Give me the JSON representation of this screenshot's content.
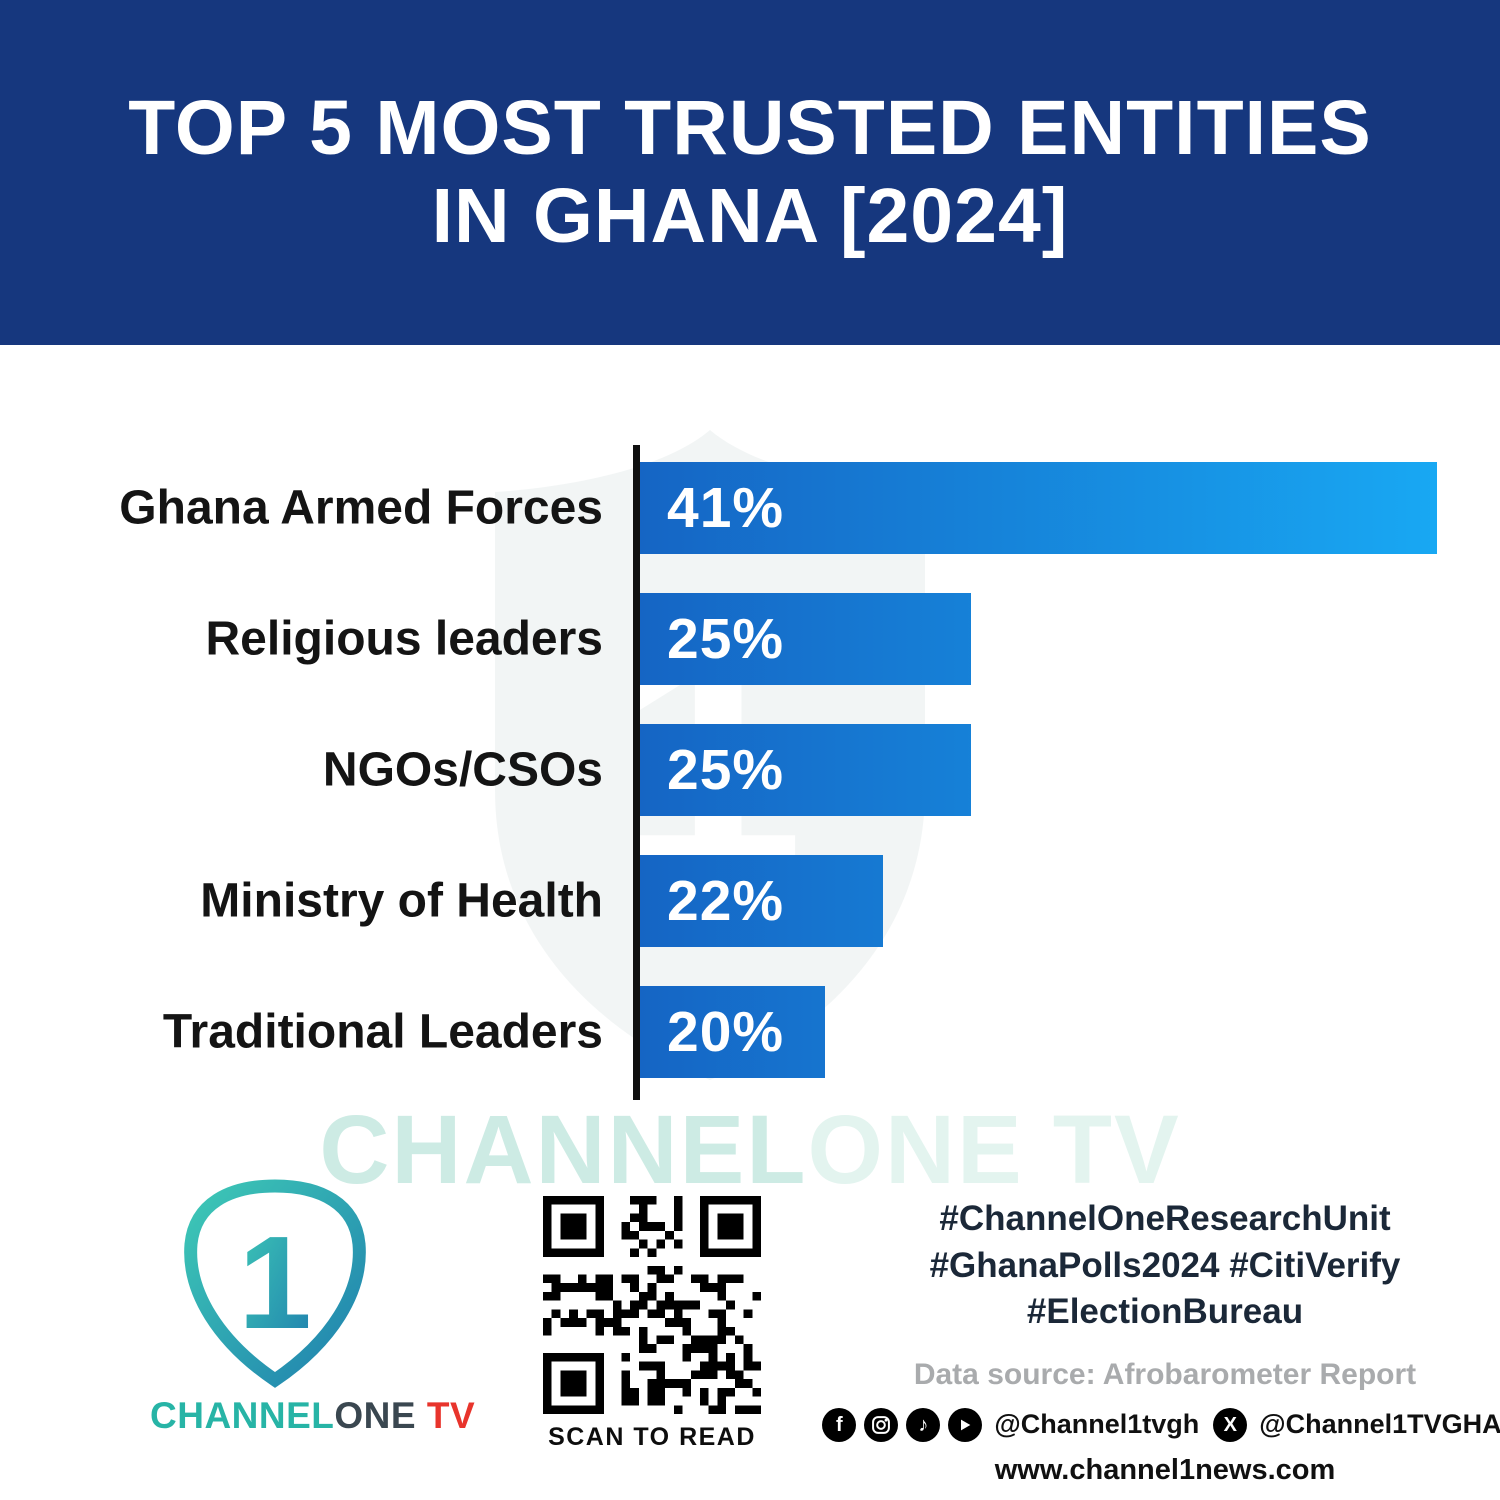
{
  "header": {
    "title_line1": "TOP 5 MOST TRUSTED ENTITIES",
    "title_line2": "IN GHANA [2024]"
  },
  "chart_data": {
    "type": "bar",
    "orientation": "horizontal",
    "title": "Top 5 Most Trusted Entities in Ghana [2024]",
    "xlabel": "",
    "ylabel": "",
    "categories": [
      "Ghana Armed Forces",
      "Religious leaders",
      "NGOs/CSOs",
      "Ministry of Health",
      "Traditional Leaders"
    ],
    "values": [
      41,
      25,
      25,
      22,
      20
    ],
    "value_labels": [
      "41%",
      "25%",
      "25%",
      "22%",
      "20%"
    ],
    "bar_display_width_pct": [
      100,
      41.5,
      41.5,
      30.5,
      23.2
    ],
    "legend": false,
    "grid": false,
    "axis_color": "#101010"
  },
  "watermark": {
    "text_left": "CHANNEL",
    "text_right": "ONE TV",
    "numeral": "1"
  },
  "footer": {
    "logo": {
      "numeral": "1",
      "brand_channel": "CHANNEL",
      "brand_one": "ONE",
      "brand_tv": " TV"
    },
    "qr_caption": "SCAN TO READ",
    "hashtags_line1": "#ChannelOneResearchUnit",
    "hashtags_line2": "#GhanaPolls2024 #CitiVerify",
    "hashtags_line3": "#ElectionBureau",
    "data_source": "Data source: Afrobarometer Report",
    "social_icons": [
      "facebook",
      "instagram",
      "tiktok",
      "youtube",
      "x"
    ],
    "social_handle1": "@Channel1tvgh",
    "social_handle2": "@Channel1TVGHA",
    "website": "www.channel1news.com"
  },
  "colors": {
    "header_bg": "#16377e",
    "bar_gradient_start": "#1565c4",
    "bar_gradient_end": "#18a8f3",
    "brand_teal": "#27b4a6",
    "brand_red": "#e8342c",
    "hashtag_navy": "#1b2838",
    "source_gray": "#a9abad"
  }
}
